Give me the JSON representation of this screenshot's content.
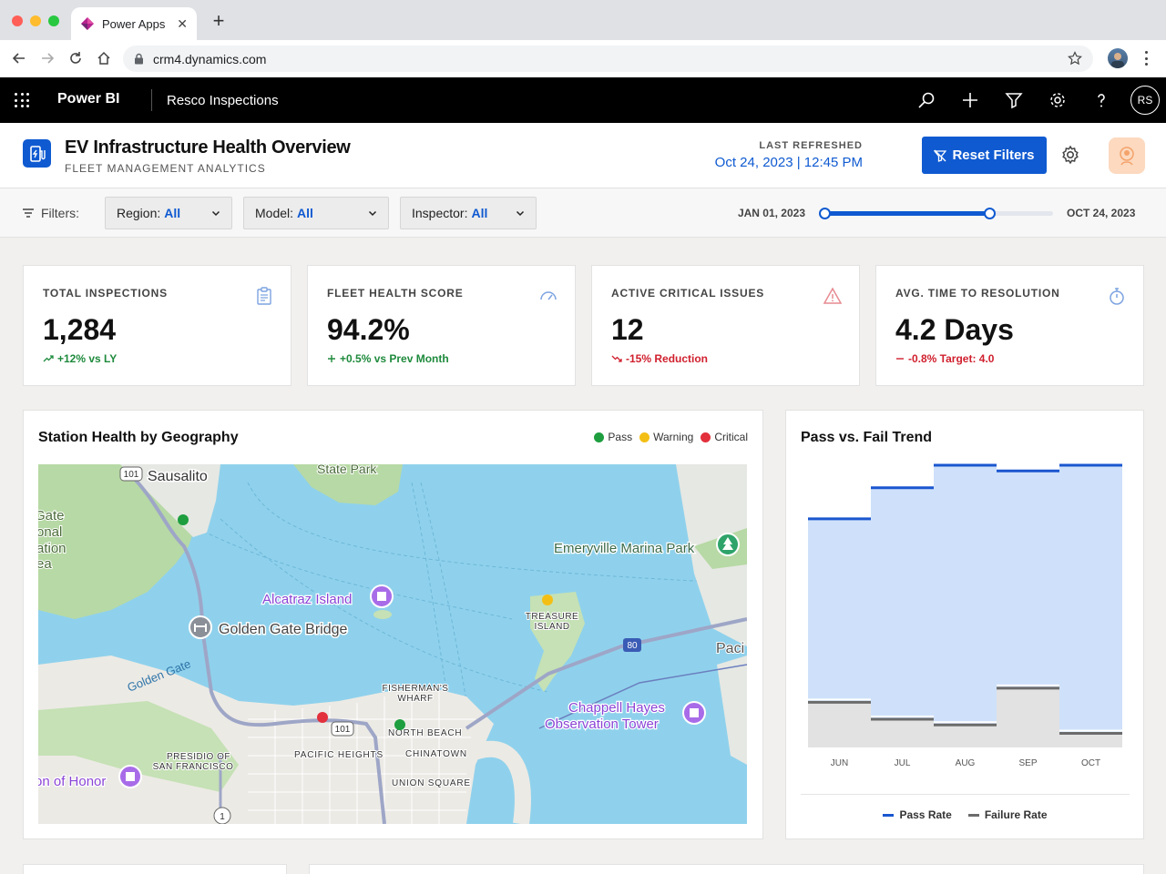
{
  "browser": {
    "tab_title": "Power Apps",
    "tab_close": "✕",
    "new_tab": "+",
    "url": "crm4.dynamics.com"
  },
  "appbar": {
    "app_name": "Power BI",
    "workspace": "Resco Inspections",
    "avatar_initials": "RS"
  },
  "report": {
    "title": "EV Infrastructure Health Overview",
    "subtitle": "FLEET MANAGEMENT ANALYTICS",
    "last_refreshed_label": "LAST REFRESHED",
    "last_refreshed_value": "Oct 24, 2023 | 12:45 PM",
    "reset_label": "Reset Filters"
  },
  "filters": {
    "label": "Filters:",
    "region": {
      "label": "Region:",
      "value": "All"
    },
    "model": {
      "label": "Model:",
      "value": "All"
    },
    "inspector": {
      "label": "Inspector:",
      "value": "All"
    },
    "date_start": "JAN 01, 2023",
    "date_end": "OCT 24, 2023",
    "range_fraction": [
      0,
      0.72
    ]
  },
  "kpis": [
    {
      "title": "TOTAL INSPECTIONS",
      "value": "1,284",
      "delta": "+12% vs LY",
      "trend": "up",
      "icon": "clipboard-icon"
    },
    {
      "title": "FLEET HEALTH SCORE",
      "value": "94.2%",
      "delta": "+0.5% vs Prev Month",
      "trend": "up",
      "icon": "gauge-icon"
    },
    {
      "title": "ACTIVE CRITICAL ISSUES",
      "value": "12",
      "delta": "-15% Reduction",
      "trend": "down",
      "icon": "warning-icon"
    },
    {
      "title": "AVG. TIME TO RESOLUTION",
      "value": "4.2 Days",
      "delta": "-0.8% Target: 4.0",
      "trend": "down",
      "icon": "stopwatch-icon"
    }
  ],
  "map_card": {
    "title": "Station Health by Geography",
    "legend": [
      {
        "label": "Pass",
        "color": "#1e9e3f"
      },
      {
        "label": "Warning",
        "color": "#f4bf15"
      },
      {
        "label": "Critical",
        "color": "#e2303c"
      }
    ],
    "labels": {
      "sausalito": "Sausalito",
      "state_park": "State Park",
      "gate": "Gate",
      "onal": "onal",
      "ation": "ation",
      "ea": "ea",
      "emeryville": "Emeryville Marina Park",
      "alcatraz": "Alcatraz Island",
      "golden_gate_bridge": "Golden Gate Bridge",
      "golden_gate": "Golden Gate",
      "treasure_island_1": "TREASURE",
      "treasure_island_2": "ISLAND",
      "paci": "Paci",
      "fishermans_1": "FISHERMAN'S",
      "fishermans_2": "WHARF",
      "chappell_1": "Chappell Hayes",
      "chappell_2": "Observation Tower",
      "north_beach": "NORTH BEACH",
      "presidio_1": "PRESIDIO OF",
      "presidio_2": "SAN FRANCISCO",
      "pacific_heights": "PACIFIC HEIGHTS",
      "chinatown": "CHINATOWN",
      "union_square": "UNION SQUARE",
      "legion": "on of Honor",
      "hwy101a": "101",
      "hwy101b": "101",
      "hwy80": "80",
      "hwy1": "1"
    }
  },
  "trend_card": {
    "title": "Pass vs. Fail Trend",
    "legend_pass": "Pass Rate",
    "legend_fail": "Failure Rate",
    "pass_color": "#1a56cf",
    "fail_color": "#6b6b6b"
  },
  "chart_data": {
    "type": "area",
    "categories": [
      "JUN",
      "JUL",
      "AUG",
      "SEP",
      "OCT"
    ],
    "series": [
      {
        "name": "Pass Rate",
        "values": [
          0.81,
          0.92,
          1.0,
          0.98,
          1.0
        ]
      },
      {
        "name": "Failure Rate",
        "values": [
          0.16,
          0.1,
          0.08,
          0.21,
          0.05
        ]
      }
    ],
    "xlabel": "",
    "ylabel": "",
    "grid": false,
    "legend": "bottom"
  }
}
